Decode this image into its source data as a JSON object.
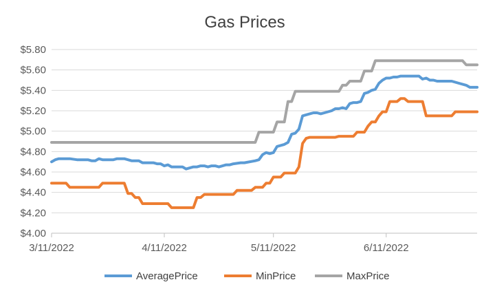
{
  "chart_data": {
    "type": "line",
    "title": "Gas Prices",
    "xlabel": "",
    "ylabel": "",
    "x_tick_labels": [
      "3/11/2022",
      "4/11/2022",
      "5/11/2022",
      "6/11/2022"
    ],
    "x_tick_days": [
      0,
      31,
      61,
      92
    ],
    "x_range_days": [
      0,
      117
    ],
    "y_tick_labels": [
      "$4.00",
      "$4.20",
      "$4.40",
      "$4.60",
      "$4.80",
      "$5.00",
      "$5.20",
      "$5.40",
      "$5.60",
      "$5.80"
    ],
    "ylim": [
      4.0,
      5.8
    ],
    "grid": "horizontal",
    "legend_position": "bottom",
    "colors": {
      "AveragePrice": "#5b9bd5",
      "MinPrice": "#ed7d31",
      "MaxPrice": "#a5a5a5",
      "grid": "#d9d9d9",
      "axis": "#bfbfbf"
    },
    "series": [
      {
        "name": "AveragePrice",
        "points": [
          [
            0,
            4.7
          ],
          [
            1,
            4.72
          ],
          [
            2,
            4.73
          ],
          [
            5,
            4.73
          ],
          [
            7,
            4.72
          ],
          [
            10,
            4.72
          ],
          [
            11,
            4.71
          ],
          [
            12,
            4.71
          ],
          [
            13,
            4.73
          ],
          [
            14,
            4.72
          ],
          [
            17,
            4.72
          ],
          [
            18,
            4.73
          ],
          [
            20,
            4.73
          ],
          [
            21,
            4.72
          ],
          [
            22,
            4.71
          ],
          [
            24,
            4.71
          ],
          [
            25,
            4.69
          ],
          [
            28,
            4.69
          ],
          [
            29,
            4.68
          ],
          [
            30,
            4.68
          ],
          [
            31,
            4.66
          ],
          [
            32,
            4.67
          ],
          [
            33,
            4.65
          ],
          [
            36,
            4.65
          ],
          [
            37,
            4.63
          ],
          [
            38,
            4.64
          ],
          [
            39,
            4.65
          ],
          [
            40,
            4.65
          ],
          [
            41,
            4.66
          ],
          [
            42,
            4.66
          ],
          [
            43,
            4.65
          ],
          [
            44,
            4.66
          ],
          [
            45,
            4.66
          ],
          [
            46,
            4.65
          ],
          [
            47,
            4.66
          ],
          [
            48,
            4.67
          ],
          [
            49,
            4.67
          ],
          [
            50,
            4.68
          ],
          [
            52,
            4.69
          ],
          [
            53,
            4.69
          ],
          [
            56,
            4.71
          ],
          [
            57,
            4.72
          ],
          [
            58,
            4.77
          ],
          [
            59,
            4.79
          ],
          [
            60,
            4.78
          ],
          [
            61,
            4.79
          ],
          [
            62,
            4.85
          ],
          [
            63,
            4.86
          ],
          [
            64,
            4.87
          ],
          [
            65,
            4.89
          ],
          [
            66,
            4.97
          ],
          [
            67,
            4.98
          ],
          [
            68,
            5.02
          ],
          [
            69,
            5.15
          ],
          [
            70,
            5.16
          ],
          [
            71,
            5.17
          ],
          [
            72,
            5.18
          ],
          [
            73,
            5.18
          ],
          [
            74,
            5.17
          ],
          [
            75,
            5.18
          ],
          [
            76,
            5.19
          ],
          [
            77,
            5.2
          ],
          [
            78,
            5.22
          ],
          [
            79,
            5.22
          ],
          [
            80,
            5.23
          ],
          [
            81,
            5.22
          ],
          [
            82,
            5.27
          ],
          [
            83,
            5.28
          ],
          [
            84,
            5.28
          ],
          [
            85,
            5.29
          ],
          [
            86,
            5.37
          ],
          [
            87,
            5.38
          ],
          [
            88,
            5.4
          ],
          [
            89,
            5.41
          ],
          [
            90,
            5.47
          ],
          [
            91,
            5.5
          ],
          [
            92,
            5.52
          ],
          [
            93,
            5.52
          ],
          [
            94,
            5.53
          ],
          [
            95,
            5.53
          ],
          [
            96,
            5.54
          ],
          [
            97,
            5.54
          ],
          [
            98,
            5.54
          ],
          [
            99,
            5.54
          ],
          [
            100,
            5.54
          ],
          [
            101,
            5.54
          ],
          [
            102,
            5.51
          ],
          [
            103,
            5.52
          ],
          [
            104,
            5.5
          ],
          [
            105,
            5.5
          ],
          [
            106,
            5.49
          ],
          [
            110,
            5.49
          ],
          [
            112,
            5.47
          ],
          [
            114,
            5.45
          ],
          [
            115,
            5.43
          ],
          [
            117,
            5.43
          ]
        ]
      },
      {
        "name": "MinPrice",
        "points": [
          [
            0,
            4.49
          ],
          [
            4,
            4.49
          ],
          [
            5,
            4.45
          ],
          [
            13,
            4.45
          ],
          [
            14,
            4.49
          ],
          [
            20,
            4.49
          ],
          [
            21,
            4.39
          ],
          [
            22,
            4.39
          ],
          [
            23,
            4.35
          ],
          [
            24,
            4.35
          ],
          [
            25,
            4.29
          ],
          [
            32,
            4.29
          ],
          [
            33,
            4.25
          ],
          [
            39,
            4.25
          ],
          [
            40,
            4.35
          ],
          [
            41,
            4.35
          ],
          [
            42,
            4.38
          ],
          [
            50,
            4.38
          ],
          [
            51,
            4.42
          ],
          [
            55,
            4.42
          ],
          [
            56,
            4.45
          ],
          [
            58,
            4.45
          ],
          [
            59,
            4.49
          ],
          [
            60,
            4.49
          ],
          [
            61,
            4.55
          ],
          [
            63,
            4.55
          ],
          [
            64,
            4.59
          ],
          [
            67,
            4.59
          ],
          [
            68,
            4.65
          ],
          [
            69,
            4.88
          ],
          [
            70,
            4.93
          ],
          [
            71,
            4.94
          ],
          [
            78,
            4.94
          ],
          [
            79,
            4.95
          ],
          [
            83,
            4.95
          ],
          [
            84,
            4.99
          ],
          [
            86,
            4.99
          ],
          [
            87,
            5.05
          ],
          [
            88,
            5.09
          ],
          [
            89,
            5.09
          ],
          [
            90,
            5.15
          ],
          [
            91,
            5.19
          ],
          [
            92,
            5.19
          ],
          [
            93,
            5.29
          ],
          [
            95,
            5.29
          ],
          [
            96,
            5.32
          ],
          [
            97,
            5.32
          ],
          [
            98,
            5.29
          ],
          [
            102,
            5.29
          ],
          [
            103,
            5.15
          ],
          [
            110,
            5.15
          ],
          [
            111,
            5.19
          ],
          [
            117,
            5.19
          ]
        ]
      },
      {
        "name": "MaxPrice",
        "points": [
          [
            0,
            4.89
          ],
          [
            56,
            4.89
          ],
          [
            57,
            4.99
          ],
          [
            61,
            4.99
          ],
          [
            62,
            5.09
          ],
          [
            64,
            5.09
          ],
          [
            65,
            5.29
          ],
          [
            66,
            5.29
          ],
          [
            67,
            5.39
          ],
          [
            79,
            5.39
          ],
          [
            80,
            5.45
          ],
          [
            81,
            5.45
          ],
          [
            82,
            5.49
          ],
          [
            85,
            5.49
          ],
          [
            86,
            5.59
          ],
          [
            88,
            5.59
          ],
          [
            89,
            5.69
          ],
          [
            113,
            5.69
          ],
          [
            114,
            5.65
          ],
          [
            117,
            5.65
          ]
        ]
      }
    ]
  }
}
